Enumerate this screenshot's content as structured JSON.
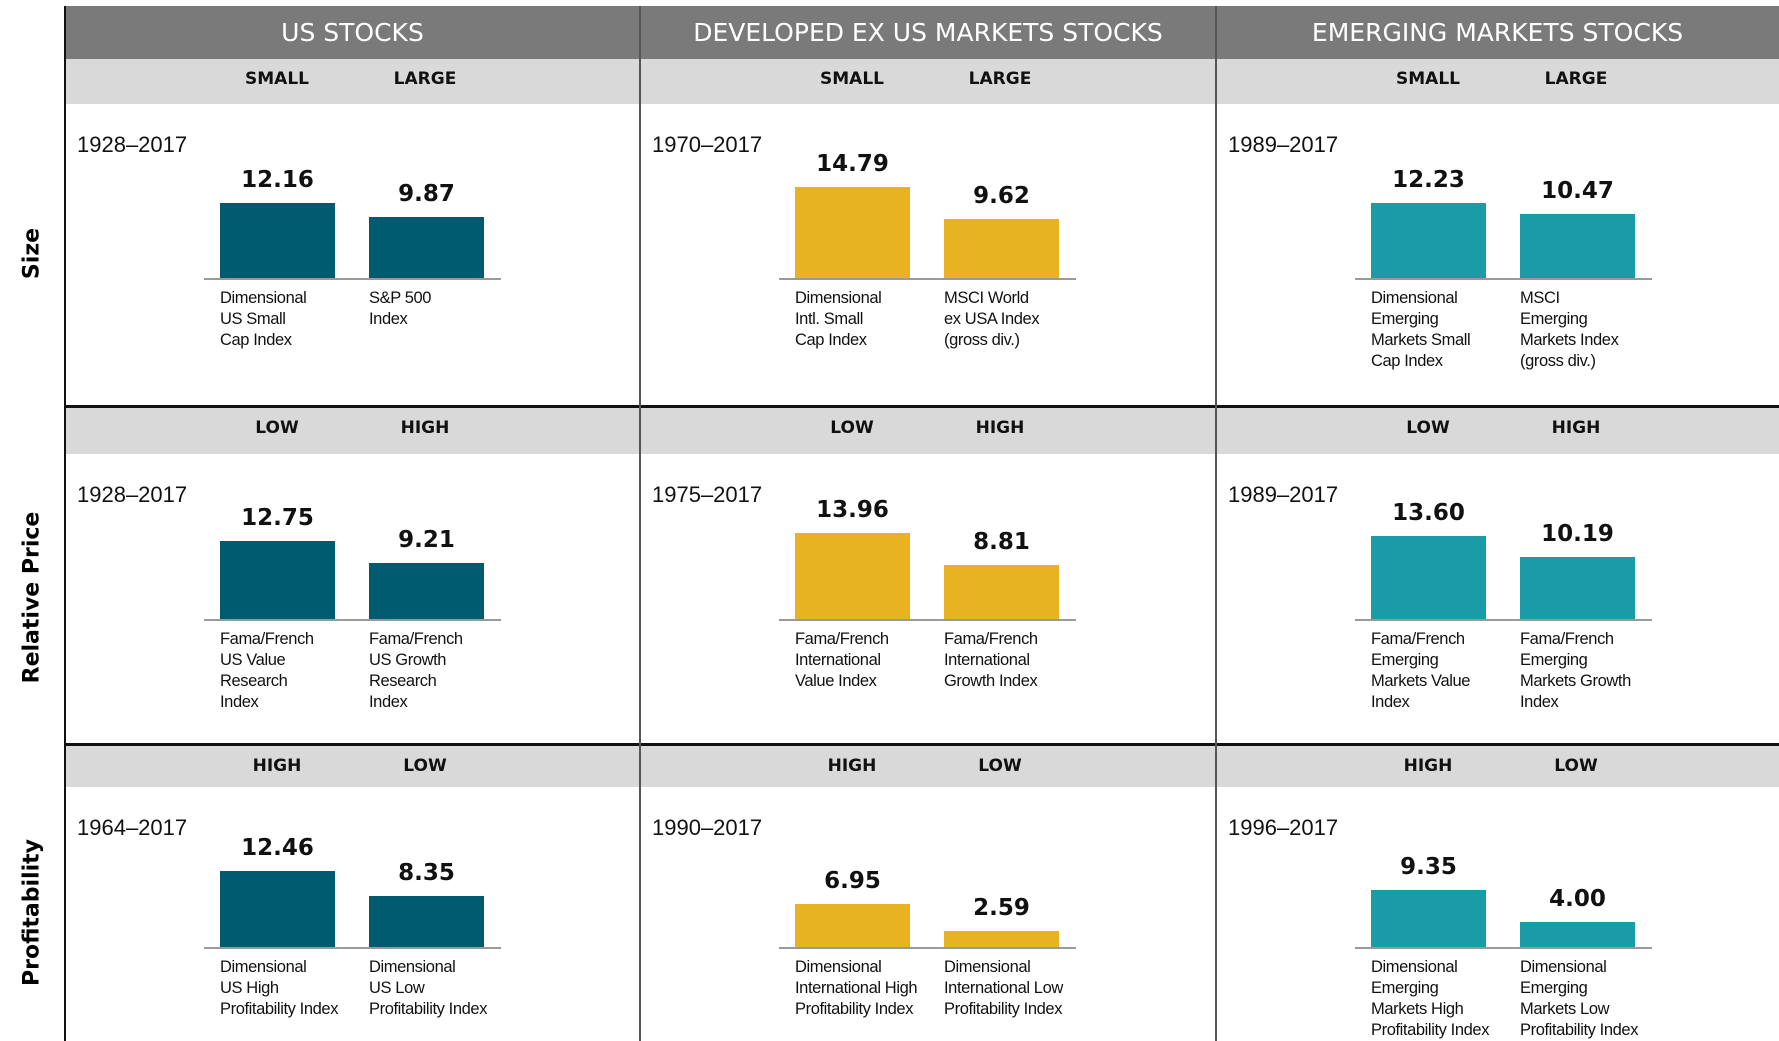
{
  "columns": [
    "US STOCKS",
    "DEVELOPED EX US MARKETS STOCKS",
    "EMERGING MARKETS STOCKS"
  ],
  "rows": [
    {
      "label": "Size",
      "subheaders": [
        "SMALL",
        "LARGE"
      ]
    },
    {
      "label": "Relative Price",
      "subheaders": [
        "LOW",
        "HIGH"
      ]
    },
    {
      "label": "Profitability",
      "subheaders": [
        "HIGH",
        "LOW"
      ]
    }
  ],
  "chart_data": [
    {
      "type": "bar",
      "subtitle": "1928–2017",
      "categories": [
        "Dimensional\nUS Small\nCap Index",
        "S&P 500\nIndex"
      ],
      "values": [
        12.16,
        9.87
      ],
      "value_labels": [
        "12.16",
        "9.87"
      ],
      "color": "#005b70"
    },
    {
      "type": "bar",
      "subtitle": "1970–2017",
      "categories": [
        "Dimensional\nIntl. Small\nCap Index",
        "MSCI World\nex USA Index\n(gross div.)"
      ],
      "values": [
        14.79,
        9.62
      ],
      "value_labels": [
        "14.79",
        "9.62"
      ],
      "color": "#e8b323"
    },
    {
      "type": "bar",
      "subtitle": "1989–2017",
      "categories": [
        "Dimensional\nEmerging\nMarkets Small\nCap Index",
        "MSCI\nEmerging\nMarkets Index\n(gross div.)"
      ],
      "values": [
        12.23,
        10.47
      ],
      "value_labels": [
        "12.23",
        "10.47"
      ],
      "color": "#1a9ba5"
    },
    {
      "type": "bar",
      "subtitle": "1928–2017",
      "categories": [
        "Fama/French\nUS Value\nResearch\nIndex",
        "Fama/French\nUS Growth\nResearch\nIndex"
      ],
      "values": [
        12.75,
        9.21
      ],
      "value_labels": [
        "12.75",
        "9.21"
      ],
      "color": "#005b70"
    },
    {
      "type": "bar",
      "subtitle": "1975–2017",
      "categories": [
        "Fama/French\nInternational\nValue Index",
        "Fama/French\nInternational\nGrowth Index"
      ],
      "values": [
        13.96,
        8.81
      ],
      "value_labels": [
        "13.96",
        "8.81"
      ],
      "color": "#e8b323"
    },
    {
      "type": "bar",
      "subtitle": "1989–2017",
      "categories": [
        "Fama/French\nEmerging\nMarkets Value\nIndex",
        "Fama/French\nEmerging\nMarkets Growth\nIndex"
      ],
      "values": [
        13.6,
        10.19
      ],
      "value_labels": [
        "13.60",
        "10.19"
      ],
      "color": "#1a9ba5"
    },
    {
      "type": "bar",
      "subtitle": "1964–2017",
      "categories": [
        "Dimensional\nUS High\nProfitability Index",
        "Dimensional\nUS Low\nProfitability Index"
      ],
      "values": [
        12.46,
        8.35
      ],
      "value_labels": [
        "12.46",
        "8.35"
      ],
      "color": "#005b70"
    },
    {
      "type": "bar",
      "subtitle": "1990–2017",
      "categories": [
        "Dimensional\nInternational High\nProfitability Index",
        "Dimensional\nInternational Low\nProfitability Index"
      ],
      "values": [
        6.95,
        2.59
      ],
      "value_labels": [
        "6.95",
        "2.59"
      ],
      "color": "#e8b323"
    },
    {
      "type": "bar",
      "subtitle": "1996–2017",
      "categories": [
        "Dimensional\nEmerging\nMarkets High\nProfitability Index",
        "Dimensional\nEmerging\nMarkets Low\nProfitability Index"
      ],
      "values": [
        9.35,
        4
      ],
      "value_labels": [
        "9.35",
        "4.00"
      ],
      "color": "#1a9ba5"
    }
  ]
}
